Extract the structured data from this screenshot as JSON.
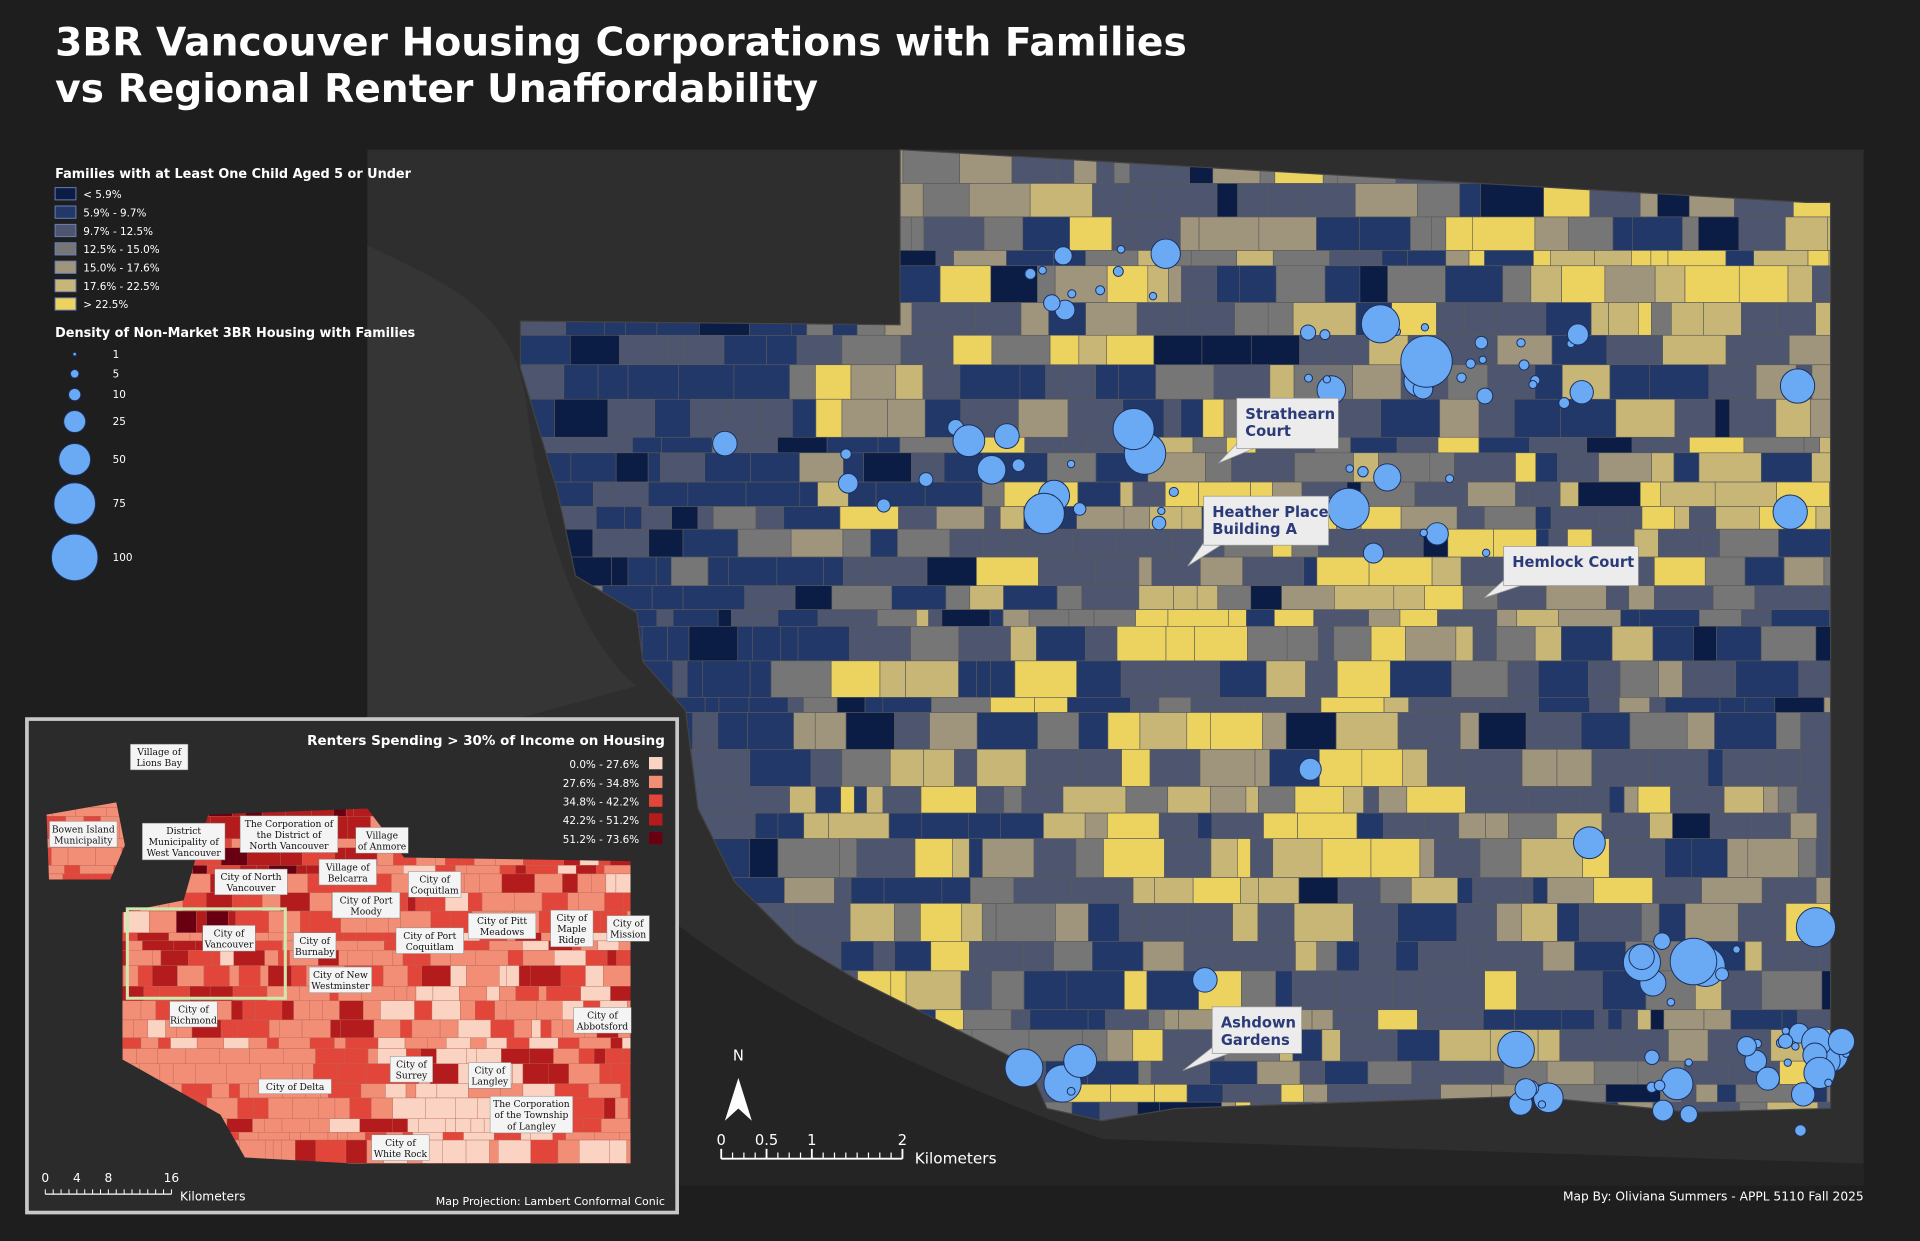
{
  "title": [
    "3BR Vancouver Housing Corporations with Families",
    "vs Regional Renter Unaffordability"
  ],
  "legend_families": {
    "title": "Families with at Least One Child Aged 5 or Under",
    "classes": [
      {
        "label": "< 5.9%",
        "color": "#0c1d45"
      },
      {
        "label": "5.9% - 9.7%",
        "color": "#223868"
      },
      {
        "label": "9.7% - 12.5%",
        "color": "#4e556e"
      },
      {
        "label": "12.5% - 15.0%",
        "color": "#767676"
      },
      {
        "label": "15.0% - 17.6%",
        "color": "#9f947c"
      },
      {
        "label": "17.6% - 22.5%",
        "color": "#c8b676"
      },
      {
        "label": "> 22.5%",
        "color": "#ecd25e"
      }
    ]
  },
  "legend_density": {
    "title": "Density of Non-Market 3BR Housing with Families",
    "sizes": [
      1,
      5,
      10,
      25,
      50,
      75,
      100
    ]
  },
  "callouts": [
    [
      "Strathearn",
      "Court"
    ],
    [
      "Heather Place",
      "Building A"
    ],
    [
      "Hemlock Court"
    ],
    [
      "Ashdown",
      "Gardens"
    ]
  ],
  "north": "N",
  "scale_bar": {
    "ticks": [
      0,
      0.5,
      1,
      2
    ],
    "unit": "Kilometers"
  },
  "inset": {
    "title": "Renters Spending > 30% of Income on Housing",
    "classes": [
      {
        "label": "0.0% - 27.6%",
        "color": "#fbd3c3"
      },
      {
        "label": "27.6% - 34.8%",
        "color": "#f28d76"
      },
      {
        "label": "34.8% - 42.2%",
        "color": "#e2463a"
      },
      {
        "label": "42.2% - 51.2%",
        "color": "#b31b1d"
      },
      {
        "label": "51.2% - 73.6%",
        "color": "#680012"
      }
    ],
    "places": [
      [
        "Village of",
        "Lions Bay"
      ],
      [
        "Bowen Island",
        "Municipality"
      ],
      [
        "District",
        "Municipality of",
        "West Vancouver"
      ],
      [
        "The Corporation of",
        "the District of",
        "North Vancouver"
      ],
      [
        "Village",
        "of Anmore"
      ],
      [
        "City of North",
        "Vancouver"
      ],
      [
        "Village of",
        "Belcarra"
      ],
      [
        "City of",
        "Coquitlam"
      ],
      [
        "City of Port",
        "Moody"
      ],
      [
        "City of",
        "Vancouver"
      ],
      [
        "City of",
        "Burnaby"
      ],
      [
        "City of Port",
        "Coquitlam"
      ],
      [
        "City of Pitt",
        "Meadows"
      ],
      [
        "City of",
        "Maple",
        "Ridge"
      ],
      [
        "City of",
        "Mission"
      ],
      [
        "City of New",
        "Westminster"
      ],
      [
        "City of",
        "Richmond"
      ],
      [
        "City of",
        "Abbotsford"
      ],
      [
        "City of",
        "Surrey"
      ],
      [
        "City of",
        "Langley"
      ],
      [
        "City of Delta"
      ],
      [
        "The Corporation",
        "of the Township",
        "of Langley"
      ],
      [
        "City of",
        "White Rock"
      ]
    ],
    "scale_ticks": [
      0,
      4,
      8,
      16
    ],
    "unit": "Kilometers",
    "projection": "Map Projection: Lambert Conformal Conic"
  },
  "credit": "Map By: Oliviana Summers - APPL 5110 Fall 2025"
}
